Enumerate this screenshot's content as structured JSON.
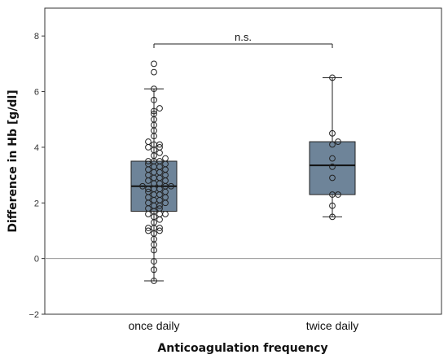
{
  "chart_data": {
    "type": "boxplot",
    "xlabel": "Anticoagulation frequency",
    "ylabel": "Difference in Hb [g/dl]",
    "ylim": [
      -2,
      9
    ],
    "yticks": [
      -2,
      0,
      2,
      4,
      6,
      8
    ],
    "reference_line_y": 0,
    "categories": [
      "once daily",
      "twice daily"
    ],
    "box_color": "#6e8499",
    "annotation": {
      "text": "n.s.",
      "between": [
        "once daily",
        "twice daily"
      ]
    },
    "groups": [
      {
        "category": "once daily",
        "min": -0.8,
        "q1": 1.7,
        "median": 2.6,
        "q3": 3.5,
        "max": 6.1,
        "points": [
          -0.8,
          -0.4,
          -0.1,
          0.3,
          0.5,
          0.7,
          0.9,
          1.0,
          1.0,
          1.1,
          1.1,
          1.1,
          1.3,
          1.4,
          1.5,
          1.6,
          1.6,
          1.6,
          1.7,
          1.8,
          1.8,
          1.9,
          1.9,
          2.0,
          2.0,
          2.1,
          2.1,
          2.2,
          2.2,
          2.3,
          2.3,
          2.4,
          2.4,
          2.5,
          2.5,
          2.5,
          2.6,
          2.6,
          2.6,
          2.7,
          2.7,
          2.8,
          2.8,
          2.9,
          2.9,
          3.0,
          3.0,
          3.1,
          3.1,
          3.2,
          3.2,
          3.3,
          3.3,
          3.4,
          3.4,
          3.5,
          3.5,
          3.5,
          3.6,
          3.7,
          3.8,
          3.9,
          4.0,
          4.0,
          4.1,
          4.1,
          4.2,
          4.4,
          4.6,
          4.8,
          5.0,
          5.2,
          5.3,
          5.4,
          5.7,
          6.1,
          6.7,
          7.0
        ]
      },
      {
        "category": "twice daily",
        "min": 1.5,
        "q1": 2.3,
        "median": 3.35,
        "q3": 4.2,
        "max": 6.5,
        "points": [
          1.5,
          1.9,
          2.3,
          2.3,
          2.9,
          3.3,
          3.6,
          4.1,
          4.2,
          4.5,
          6.5
        ]
      }
    ]
  }
}
